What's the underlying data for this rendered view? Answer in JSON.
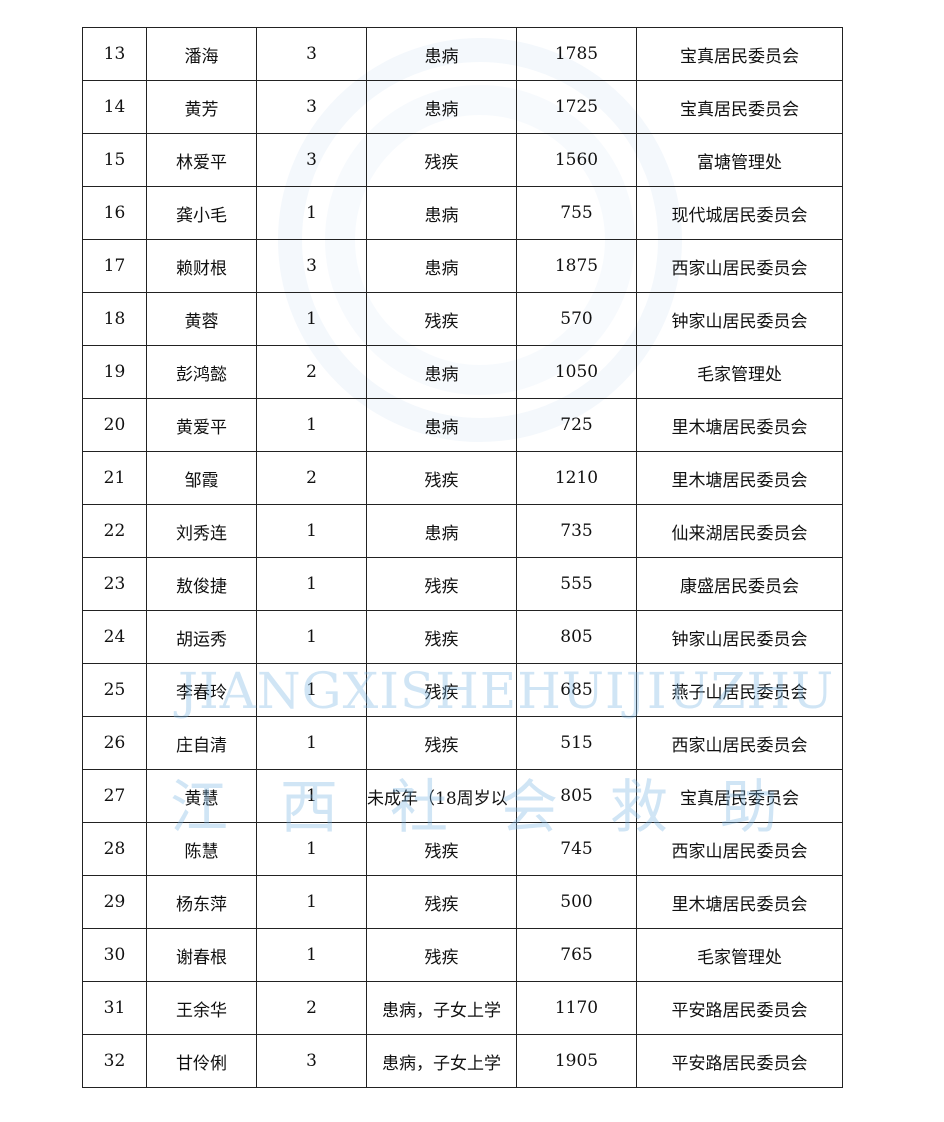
{
  "rows": [
    {
      "no": "13",
      "name": "潘海",
      "count": "3",
      "reason": "患病",
      "amount": "1785",
      "unit": "宝真居民委员会"
    },
    {
      "no": "14",
      "name": "黄芳",
      "count": "3",
      "reason": "患病",
      "amount": "1725",
      "unit": "宝真居民委员会"
    },
    {
      "no": "15",
      "name": "林爱平",
      "count": "3",
      "reason": "残疾",
      "amount": "1560",
      "unit": "富塘管理处"
    },
    {
      "no": "16",
      "name": "龚小毛",
      "count": "1",
      "reason": "患病",
      "amount": "755",
      "unit": "现代城居民委员会"
    },
    {
      "no": "17",
      "name": "赖财根",
      "count": "3",
      "reason": "患病",
      "amount": "1875",
      "unit": "西家山居民委员会"
    },
    {
      "no": "18",
      "name": "黄蓉",
      "count": "1",
      "reason": "残疾",
      "amount": "570",
      "unit": "钟家山居民委员会"
    },
    {
      "no": "19",
      "name": "彭鸿懿",
      "count": "2",
      "reason": "患病",
      "amount": "1050",
      "unit": "毛家管理处"
    },
    {
      "no": "20",
      "name": "黄爱平",
      "count": "1",
      "reason": "患病",
      "amount": "725",
      "unit": "里木塘居民委员会"
    },
    {
      "no": "21",
      "name": "邹霞",
      "count": "2",
      "reason": "残疾",
      "amount": "1210",
      "unit": "里木塘居民委员会"
    },
    {
      "no": "22",
      "name": "刘秀连",
      "count": "1",
      "reason": "患病",
      "amount": "735",
      "unit": "仙来湖居民委员会"
    },
    {
      "no": "23",
      "name": "敖俊捷",
      "count": "1",
      "reason": "残疾",
      "amount": "555",
      "unit": "康盛居民委员会"
    },
    {
      "no": "24",
      "name": "胡运秀",
      "count": "1",
      "reason": "残疾",
      "amount": "805",
      "unit": "钟家山居民委员会"
    },
    {
      "no": "25",
      "name": "李春玲",
      "count": "1",
      "reason": "残疾",
      "amount": "685",
      "unit": "燕子山居民委员会"
    },
    {
      "no": "26",
      "name": "庄自清",
      "count": "1",
      "reason": "残疾",
      "amount": "515",
      "unit": "西家山居民委员会"
    },
    {
      "no": "27",
      "name": "黄慧",
      "count": "1",
      "reason": "未成年（18周岁以",
      "amount": "805",
      "unit": "宝真居民委员会"
    },
    {
      "no": "28",
      "name": "陈慧",
      "count": "1",
      "reason": "残疾",
      "amount": "745",
      "unit": "西家山居民委员会"
    },
    {
      "no": "29",
      "name": "杨东萍",
      "count": "1",
      "reason": "残疾",
      "amount": "500",
      "unit": "里木塘居民委员会"
    },
    {
      "no": "30",
      "name": "谢春根",
      "count": "1",
      "reason": "残疾",
      "amount": "765",
      "unit": "毛家管理处"
    },
    {
      "no": "31",
      "name": "王余华",
      "count": "2",
      "reason": "患病，子女上学",
      "amount": "1170",
      "unit": "平安路居民委员会"
    },
    {
      "no": "32",
      "name": "甘伶俐",
      "count": "3",
      "reason": "患病，子女上学",
      "amount": "1905",
      "unit": "平安路居民委员会"
    }
  ],
  "watermark": {
    "latin": "JIANGXISHEHUIJIUZHU",
    "chinese": "江西社会救助",
    "color": "#78b4e1"
  }
}
